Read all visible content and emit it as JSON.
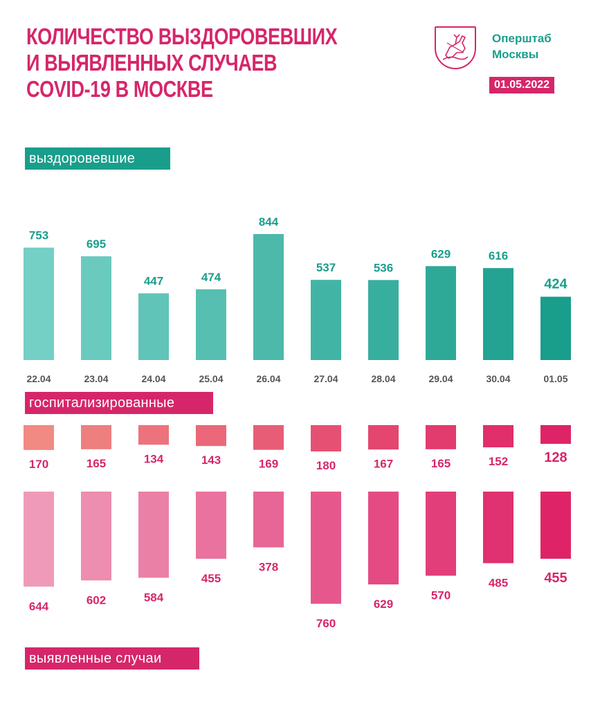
{
  "header": {
    "title_lines": [
      "Количество выздоровевших",
      "и выявленных случаев",
      "COVID-19 в Москве"
    ],
    "org_name_lines": [
      "Оперштаб",
      "Москвы"
    ],
    "date": "01.05.2022"
  },
  "labels": {
    "recovered": "выздоровевшие",
    "hospitalized": "госпитализированные",
    "cases": "выявленные случаи"
  },
  "colors": {
    "title": "#d6266a",
    "recovered_start": "#74cfc4",
    "recovered_end": "#1a9e8c",
    "hosp_start": "#f08a82",
    "hosp_end": "#de2467",
    "cases_start": "#ef9ab9",
    "cases_end": "#de2467",
    "recovered_text": "#1a9e8c",
    "pink_text": "#d6266a",
    "date_text": "#555555"
  },
  "chart_data": [
    {
      "type": "bar",
      "categories": [
        "22.04",
        "23.04",
        "24.04",
        "25.04",
        "26.04",
        "27.04",
        "28.04",
        "29.04",
        "30.04",
        "01.05"
      ],
      "series": [
        {
          "name": "выздоровевшие",
          "values": [
            753,
            695,
            447,
            474,
            844,
            537,
            536,
            629,
            616,
            424
          ]
        }
      ],
      "title": "выздоровевшие",
      "ylim": [
        0,
        844
      ]
    },
    {
      "type": "bar",
      "categories": [
        "22.04",
        "23.04",
        "24.04",
        "25.04",
        "26.04",
        "27.04",
        "28.04",
        "29.04",
        "30.04",
        "01.05"
      ],
      "series": [
        {
          "name": "госпитализированные",
          "values": [
            170,
            165,
            134,
            143,
            169,
            180,
            167,
            165,
            152,
            128
          ]
        }
      ],
      "title": "госпитализированные",
      "ylim": [
        0,
        180
      ]
    },
    {
      "type": "bar",
      "categories": [
        "22.04",
        "23.04",
        "24.04",
        "25.04",
        "26.04",
        "27.04",
        "28.04",
        "29.04",
        "30.04",
        "01.05"
      ],
      "series": [
        {
          "name": "выявленные случаи",
          "values": [
            644,
            602,
            584,
            455,
            378,
            760,
            629,
            570,
            485,
            455
          ]
        }
      ],
      "title": "выявленные случаи",
      "ylim": [
        0,
        760
      ]
    }
  ]
}
